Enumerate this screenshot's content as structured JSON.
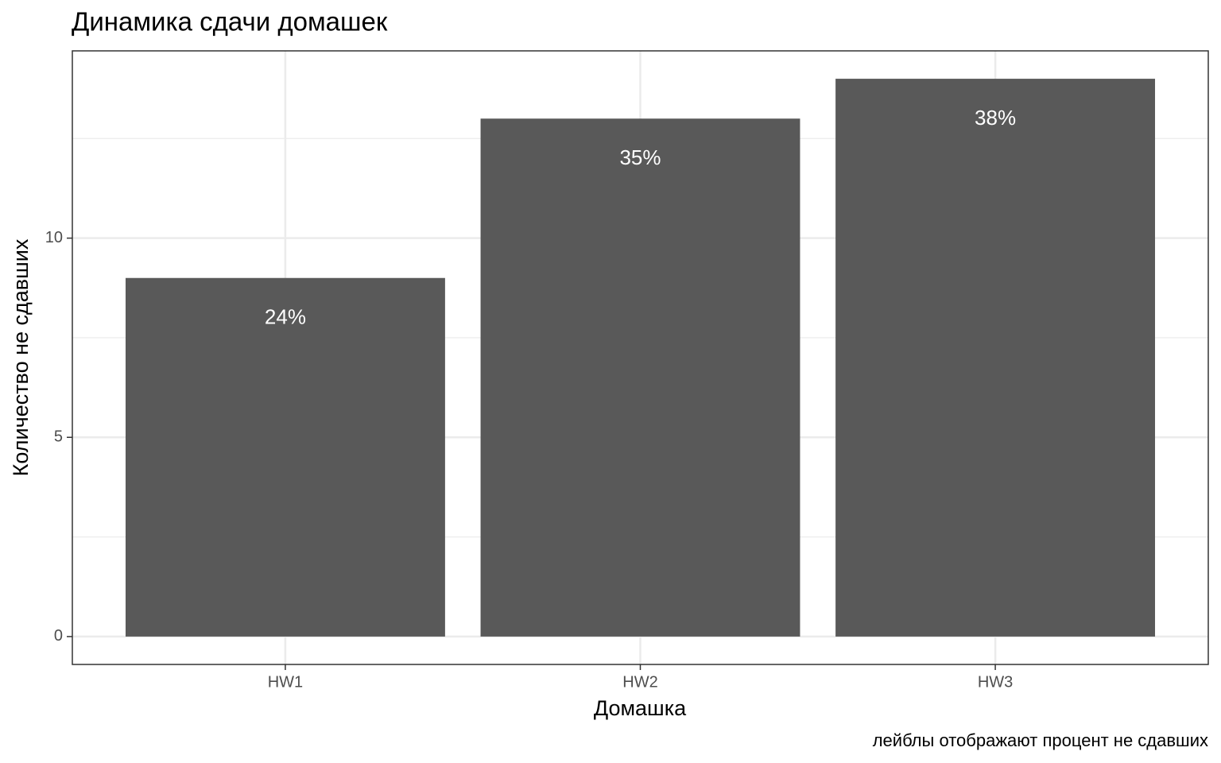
{
  "chart_data": {
    "type": "bar",
    "title": "Динамика сдачи домашек",
    "x_label": "Домашка",
    "y_label": "Количество не сдавших",
    "caption": "лейблы отображают процент не сдавших",
    "categories": [
      "HW1",
      "HW2",
      "HW3"
    ],
    "values": [
      9,
      13,
      14
    ],
    "color": "#595959",
    "percent_values": [
      24,
      35,
      38
    ],
    "percent_labels": [
      "24%",
      "35%",
      "38%"
    ],
    "ylim": [
      -0.7,
      14.7
    ],
    "yticks": [
      0,
      5,
      10
    ],
    "minor_yticks": [
      2.5,
      7.5,
      12.5
    ],
    "grid": true
  }
}
